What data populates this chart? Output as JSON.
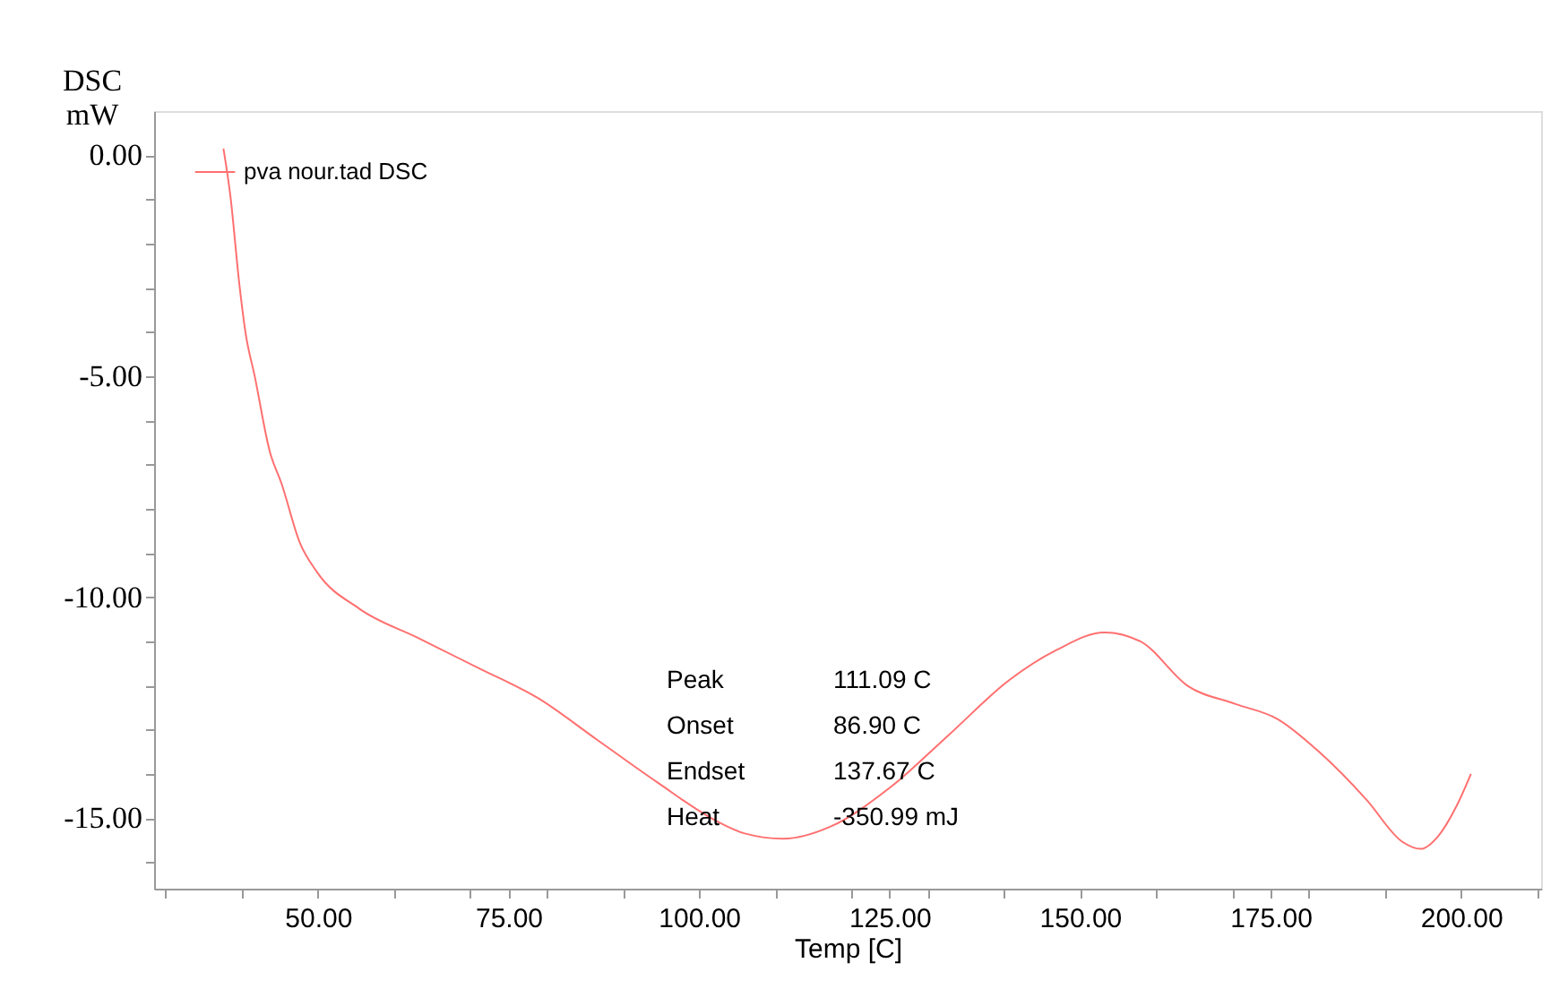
{
  "chart_data": {
    "type": "line",
    "xlabel": "Temp  [C]",
    "ylabel": "DSC\nmW",
    "xlim": [
      28.5,
      210.5
    ],
    "ylim": [
      -16.6,
      1.0
    ],
    "xticks": [
      {
        "value": 30,
        "label": null
      },
      {
        "value": 40,
        "label": null
      },
      {
        "value": 50,
        "label": "50.00"
      },
      {
        "value": 60,
        "label": null
      },
      {
        "value": 70,
        "label": null
      },
      {
        "value": 75,
        "label": "75.00"
      },
      {
        "value": 80,
        "label": null
      },
      {
        "value": 90,
        "label": null
      },
      {
        "value": 100,
        "label": "100.00"
      },
      {
        "value": 110,
        "label": null
      },
      {
        "value": 120,
        "label": null
      },
      {
        "value": 125,
        "label": "125.00"
      },
      {
        "value": 130,
        "label": null
      },
      {
        "value": 140,
        "label": null
      },
      {
        "value": 150,
        "label": "150.00"
      },
      {
        "value": 160,
        "label": null
      },
      {
        "value": 170,
        "label": null
      },
      {
        "value": 175,
        "label": "175.00"
      },
      {
        "value": 180,
        "label": null
      },
      {
        "value": 190,
        "label": null
      },
      {
        "value": 200,
        "label": "200.00"
      },
      {
        "value": 210,
        "label": null
      }
    ],
    "yticks": [
      {
        "value": 0,
        "label": "0.00"
      },
      {
        "value": -1,
        "label": null
      },
      {
        "value": -2,
        "label": null
      },
      {
        "value": -3,
        "label": null
      },
      {
        "value": -4,
        "label": null
      },
      {
        "value": -5,
        "label": "-5.00"
      },
      {
        "value": -6,
        "label": null
      },
      {
        "value": -7,
        "label": null
      },
      {
        "value": -8,
        "label": null
      },
      {
        "value": -9,
        "label": null
      },
      {
        "value": -10,
        "label": "-10.00"
      },
      {
        "value": -11,
        "label": null
      },
      {
        "value": -12,
        "label": null
      },
      {
        "value": -13,
        "label": null
      },
      {
        "value": -14,
        "label": null
      },
      {
        "value": -15,
        "label": "-15.00"
      },
      {
        "value": -16,
        "label": null
      }
    ],
    "grid": false,
    "legend": "top left",
    "marker": "none",
    "line_style": "solid",
    "annotations": [
      "Peak",
      "111.09 C",
      "Onset",
      "86.90 C",
      "Endset",
      "137.67 C",
      "Heat",
      "-350.99 mJ"
    ],
    "series": [
      {
        "name": "pva nour.tad   DSC",
        "color": "#ff7070",
        "x": [
          37.6,
          38.5,
          39.7,
          40.5,
          41.7,
          43.7,
          45.2,
          47.6,
          49.9,
          55.4,
          63.2,
          71.1,
          78.9,
          86.7,
          94.5,
          102.3,
          106.0,
          111.1,
          117.2,
          125.0,
          132.9,
          140.7,
          146.9,
          153.2,
          157.9,
          164.2,
          170.4,
          175.9,
          181.4,
          187.6,
          192.3,
          194.7,
          197.0,
          199.4,
          201.3
        ],
        "values": [
          0.15,
          -0.91,
          -2.94,
          -4.02,
          -5.0,
          -6.72,
          -7.42,
          -8.76,
          -9.44,
          -10.26,
          -10.93,
          -11.61,
          -12.29,
          -13.24,
          -14.19,
          -15.07,
          -15.35,
          -15.47,
          -15.2,
          -14.32,
          -13.1,
          -11.88,
          -11.2,
          -10.8,
          -11.0,
          -12.02,
          -12.42,
          -12.76,
          -13.51,
          -14.59,
          -15.54,
          -15.7,
          -15.41,
          -14.73,
          -14.0
        ]
      }
    ]
  }
}
